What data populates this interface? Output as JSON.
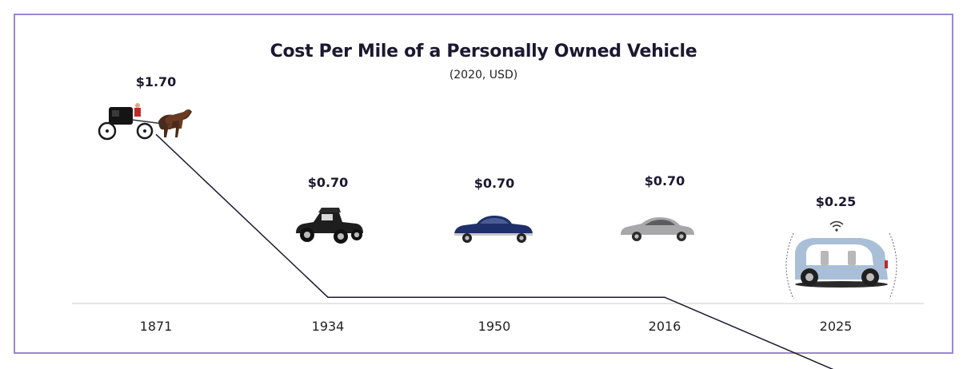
{
  "chart_data": {
    "type": "line",
    "title": "Cost Per Mile of a Personally Owned Vehicle",
    "subtitle": "(2020, USD)",
    "categories": [
      "1871",
      "1934",
      "1950",
      "2016",
      "2025"
    ],
    "values": [
      1.7,
      0.7,
      0.7,
      0.7,
      0.25
    ],
    "value_labels": [
      "$1.70",
      "$0.70",
      "$0.70",
      "$0.70",
      "$0.25"
    ],
    "icons": [
      "horse-carriage-icon",
      "vintage-car-icon",
      "classic-sedan-icon",
      "modern-sedan-icon",
      "autonomous-pod-icon"
    ],
    "ylim": [
      0,
      2.2
    ],
    "grid": false,
    "colors": {
      "line": "#1b1830",
      "frame": "#9b86d8",
      "pod": "#a9bfd8"
    }
  }
}
